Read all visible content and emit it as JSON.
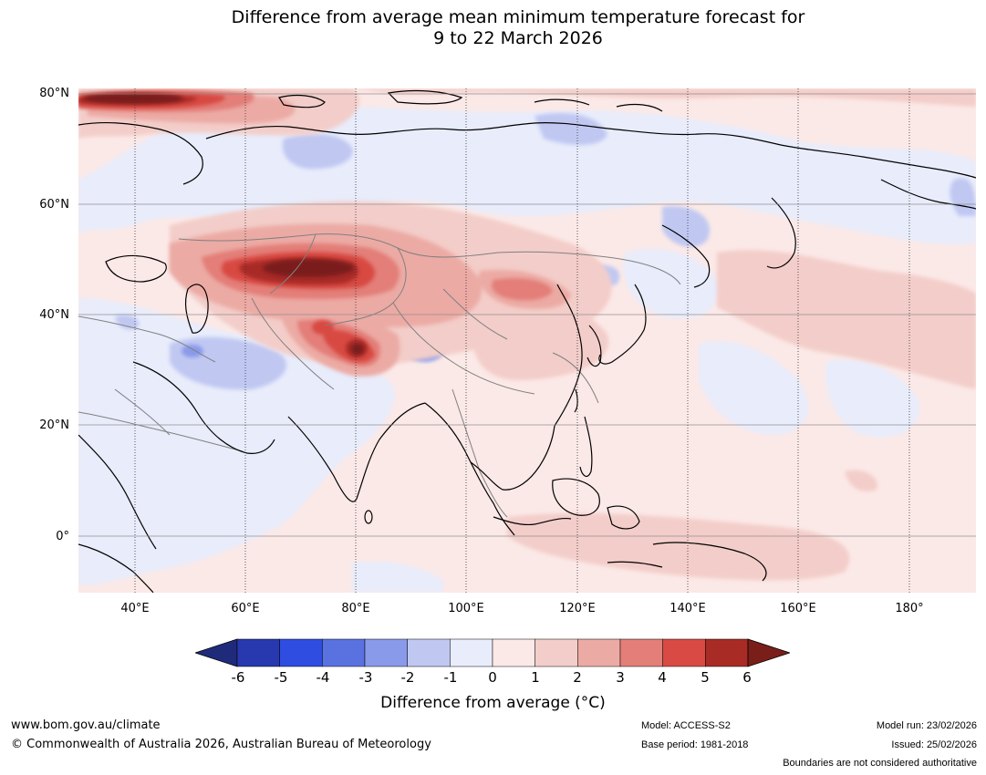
{
  "title": {
    "line1": "Difference from average mean minimum temperature forecast for",
    "line2": "9 to 22 March 2026"
  },
  "map": {
    "lat_labels": [
      "80°N",
      "60°N",
      "40°N",
      "20°N",
      "0°"
    ],
    "lon_labels": [
      "40°E",
      "60°E",
      "80°E",
      "100°E",
      "120°E",
      "140°E",
      "160°E",
      "180°"
    ],
    "lat_range": [
      -10,
      81
    ],
    "lon_range": [
      30,
      192
    ],
    "gridline_color": "#8a8a8a",
    "coastline_color": "#000000",
    "boundary_color": "#808080"
  },
  "colorbar": {
    "ticks": [
      "-6",
      "-5",
      "-4",
      "-3",
      "-2",
      "-1",
      "0",
      "1",
      "2",
      "3",
      "4",
      "5",
      "6"
    ],
    "colors": [
      "#1f2b7a",
      "#2838ae",
      "#2f4de0",
      "#5a72e0",
      "#8a9aea",
      "#c0c8f2",
      "#e8ecfb",
      "#fbe9e7",
      "#f3cdc9",
      "#ecaaa4",
      "#e37e78",
      "#d84a43",
      "#a82c25",
      "#7a1e1a"
    ],
    "label": "Difference from average (°C)"
  },
  "footer": {
    "website": "www.bom.gov.au/climate",
    "copyright": "© Commonwealth of Australia 2026, Australian Bureau of Meteorology",
    "model": "Model: ACCESS-S2",
    "base_period": "Base period: 1981-2018",
    "model_run": "Model run: 23/02/2026",
    "issued": "Issued: 25/02/2026",
    "disclaimer": "Boundaries are not considered authoritative"
  }
}
